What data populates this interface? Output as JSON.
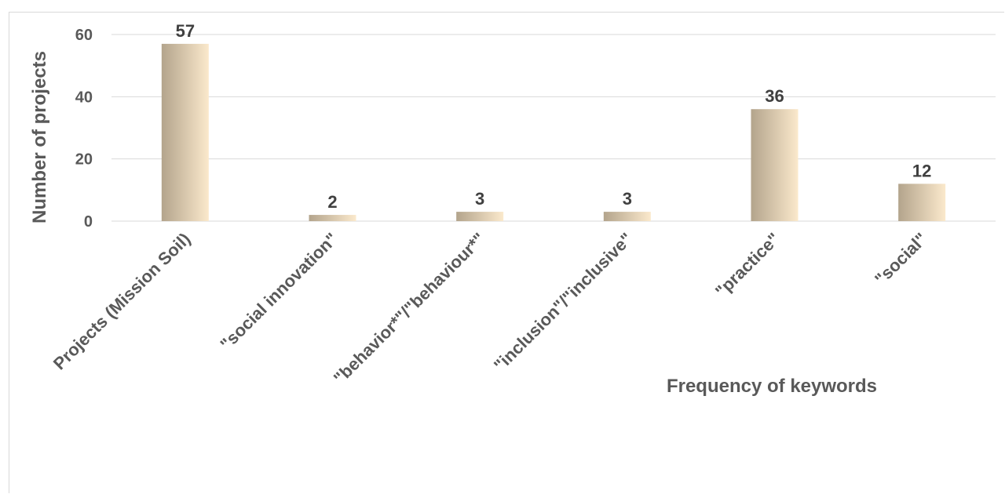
{
  "chart_data": {
    "type": "bar",
    "categories": [
      "Projects (Mission Soil)",
      "\"social innovation\"",
      "\"behavior*\"/\"behaviour*\"",
      "\"inclusion\"/\"inclusive\"",
      "\"practice\"",
      "\"social\""
    ],
    "values": [
      57,
      2,
      3,
      3,
      36,
      12
    ],
    "data_labels": [
      "57",
      "2",
      "3",
      "3",
      "36",
      "12"
    ],
    "title": "",
    "xlabel": "Frequency of keywords",
    "ylabel": "Number of projects",
    "ylim": [
      0,
      60
    ],
    "yticks": [
      "0",
      "20",
      "40",
      "60"
    ],
    "grid": true,
    "legend": "none",
    "colors": {
      "bar_dark": "#b3a48c",
      "bar_light": "#fbe9cc",
      "grid": "#d9d9d9",
      "text": "#595959"
    }
  }
}
